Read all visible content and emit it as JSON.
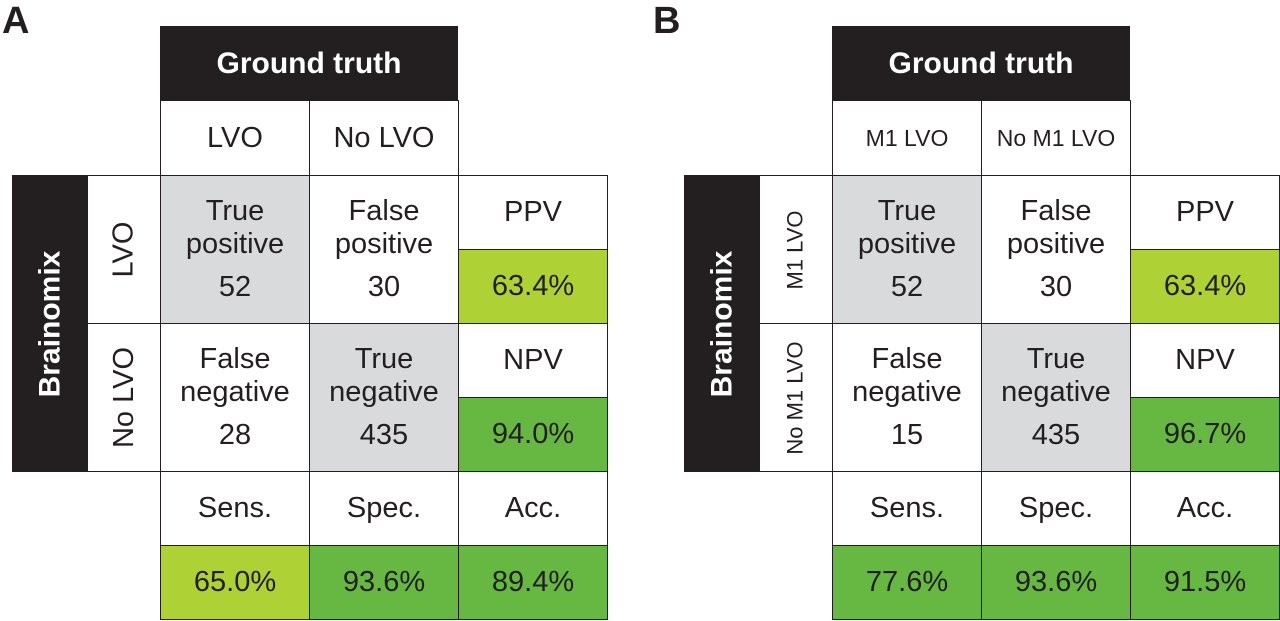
{
  "panels": {
    "a": {
      "letter": "A",
      "ground_truth": "Ground truth",
      "col_pos": "LVO",
      "col_neg": "No LVO",
      "side_title": "Brainomix",
      "row_pos": "LVO",
      "row_neg": "No LVO",
      "tp_l1": "True",
      "tp_l2": "positive",
      "tp_val": "52",
      "fp_l1": "False",
      "fp_l2": "positive",
      "fp_val": "30",
      "fn_l1": "False",
      "fn_l2": "negative",
      "fn_val": "28",
      "tn_l1": "True",
      "tn_l2": "negative",
      "tn_val": "435",
      "ppv_label": "PPV",
      "ppv_val": "63.4%",
      "npv_label": "NPV",
      "npv_val": "94.0%",
      "sens_label": "Sens.",
      "sens_val": "65.0%",
      "spec_label": "Spec.",
      "spec_val": "93.6%",
      "acc_label": "Acc.",
      "acc_val": "89.4%"
    },
    "b": {
      "letter": "B",
      "ground_truth": "Ground truth",
      "col_pos": "M1 LVO",
      "col_neg": "No M1 LVO",
      "side_title": "Brainomix",
      "row_pos": "M1 LVO",
      "row_neg": "No M1 LVO",
      "tp_l1": "True",
      "tp_l2": "positive",
      "tp_val": "52",
      "fp_l1": "False",
      "fp_l2": "positive",
      "fp_val": "30",
      "fn_l1": "False",
      "fn_l2": "negative",
      "fn_val": "15",
      "tn_l1": "True",
      "tn_l2": "negative",
      "tn_val": "435",
      "ppv_label": "PPV",
      "ppv_val": "63.4%",
      "npv_label": "NPV",
      "npv_val": "96.7%",
      "sens_label": "Sens.",
      "sens_val": "77.6%",
      "spec_label": "Spec.",
      "spec_val": "93.6%",
      "acc_label": "Acc.",
      "acc_val": "91.5%"
    }
  },
  "colors": {
    "dark": "#231f20",
    "gray": "#d9dadb",
    "lime": "#aed136",
    "green": "#67b843"
  }
}
